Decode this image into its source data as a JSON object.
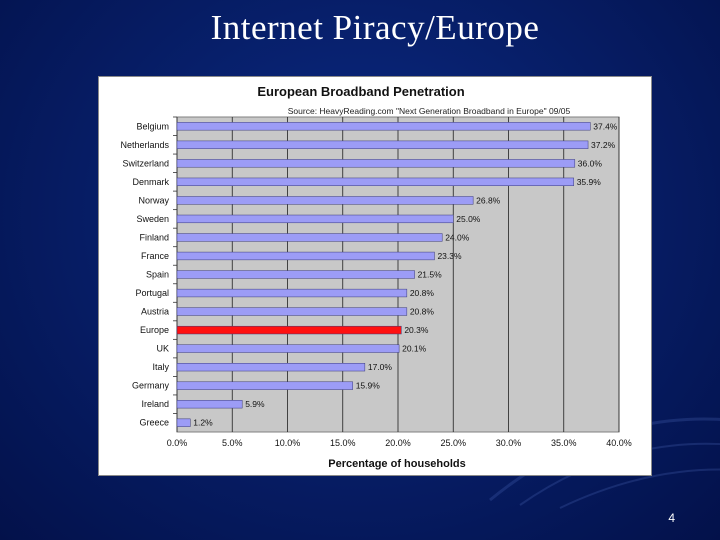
{
  "slide": {
    "title": "Internet Piracy/Europe",
    "page_number": "4"
  },
  "colors": {
    "bar": "#9c9cf6",
    "highlight_bar": "#ff1010",
    "plot_bg": "#c8c8c8",
    "background": "#081e6b"
  },
  "chart_data": {
    "type": "bar",
    "orientation": "horizontal",
    "title": "European Broadband Penetration",
    "subtitle": "Source: HeavyReading.com \"Next Generation Broadband in Europe\" 09/05",
    "xlabel": "Percentage of households",
    "ylabel": "",
    "xlim": [
      0,
      40
    ],
    "x_ticks": [
      "0.0%",
      "5.0%",
      "10.0%",
      "15.0%",
      "20.0%",
      "25.0%",
      "30.0%",
      "35.0%",
      "40.0%"
    ],
    "grid": true,
    "categories": [
      "Belgium",
      "Netherlands",
      "Switzerland",
      "Denmark",
      "Norway",
      "Sweden",
      "Finland",
      "France",
      "Spain",
      "Portugal",
      "Austria",
      "Europe",
      "UK",
      "Italy",
      "Germany",
      "Ireland",
      "Greece"
    ],
    "values": [
      37.4,
      37.2,
      36.0,
      35.9,
      26.8,
      25.0,
      24.0,
      23.3,
      21.5,
      20.8,
      20.8,
      20.3,
      20.1,
      17.0,
      15.9,
      5.9,
      1.2
    ],
    "value_labels": [
      "37.4%",
      "37.2%",
      "36.0%",
      "35.9%",
      "26.8%",
      "25.0%",
      "24.0%",
      "23.3%",
      "21.5%",
      "20.8%",
      "20.8%",
      "20.3%",
      "20.1%",
      "17.0%",
      "15.9%",
      "5.9%",
      "1.2%"
    ],
    "highlight_category": "Europe"
  }
}
